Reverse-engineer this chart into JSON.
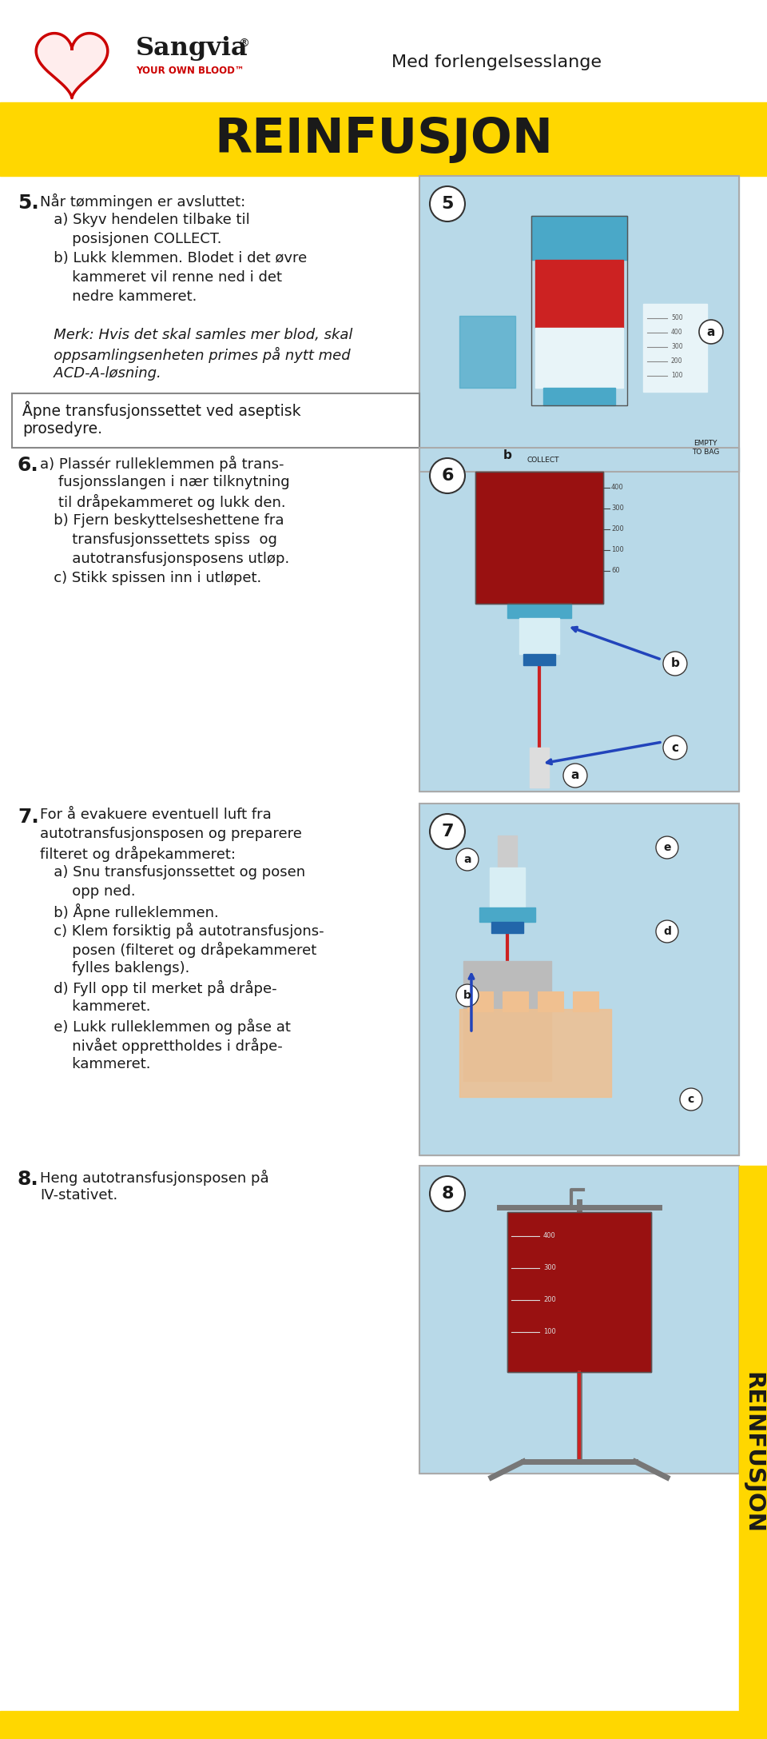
{
  "page_bg": "#ffffff",
  "yellow_color": "#FFD700",
  "title_text": "REINFUSJON",
  "subtitle_text": "Med forlengelsesslange",
  "logo_text": "Sangvia",
  "logo_sub": "YOUR OWN BLOOD",
  "box_text": "Åpne transfusjonssettet ved aseptisk\nprosedyre.",
  "step5_lines": [
    [
      "Når tømmingen er avsluttet:",
      false
    ],
    [
      "   a) Skyv hendelen tilbake til",
      false
    ],
    [
      "       posisjonen COLLECT.",
      false
    ],
    [
      "   b) Lukk klemmen. Blodet i det øvre",
      false
    ],
    [
      "       kammeret vil renne ned i det",
      false
    ],
    [
      "       nedre kammeret.",
      false
    ],
    [
      "",
      false
    ],
    [
      "   Merk: Hvis det skal samles mer blod, skal",
      true
    ],
    [
      "   oppsamlingsenheten primes på nytt med",
      true
    ],
    [
      "   ACD-A-løsning.",
      true
    ]
  ],
  "step6_lines": [
    "a) Plassér rulleklemmen på trans-",
    "    fusjonsslangen i nær tilknytning",
    "    til dråpekammeret og lukk den.",
    "   b) Fjern beskyttelseshettene fra",
    "       transfusjonssettets spiss  og",
    "       autotransfusjonsposens utløp.",
    "   c) Stikk spissen inn i utløpet."
  ],
  "step7_lines": [
    "For å evakuere eventuell luft fra",
    "autotransfusjonsposen og preparere",
    "filteret og dråpekammeret:",
    "   a) Snu transfusjonssettet og posen",
    "       opp ned.",
    "   b) Åpne rulleklemmen.",
    "   c) Klem forsiktig på autotransfusjons-",
    "       posen (filteret og dråpekammeret",
    "       fylles baklengs).",
    "   d) Fyll opp til merket på dråpe-",
    "       kammeret.",
    "   e) Lukk rulleklemmen og påse at",
    "       nivået opprettholdes i dråpe-",
    "       kammeret."
  ],
  "step8_text": "Heng autotransfusjonsposen på\nIV-stativet.",
  "side_text": "REINFUSJON",
  "heart_color": "#cc0000",
  "red_color": "#cc2222",
  "blue_color": "#4aa8c8",
  "light_blue_bg": "#b8d9e8",
  "dark_text": "#1a1a1a"
}
